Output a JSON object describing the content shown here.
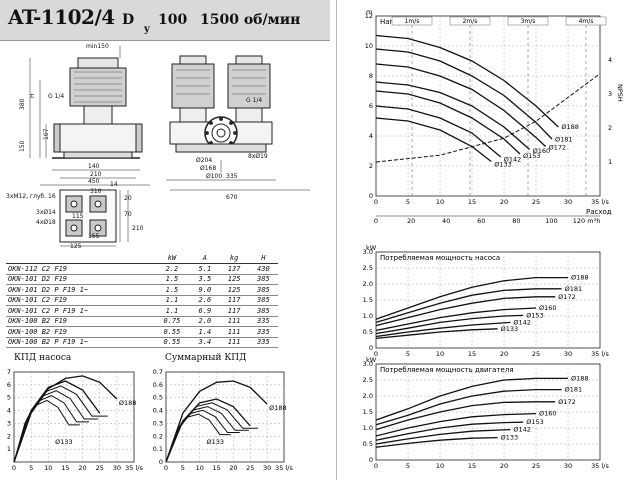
{
  "header": {
    "model": "AT-1102/4",
    "dn_label": "D",
    "dn_sub": "y",
    "dn_value": "100",
    "speed": "1500 об/мин"
  },
  "drawing": {
    "dims_side": [
      "min150",
      "H",
      "380",
      "G 1/4",
      "150",
      "107",
      "140",
      "210",
      "450",
      "310"
    ],
    "dims_front": [
      "G 1/4",
      "Ø204",
      "Ø168",
      "Ø100",
      "8xØ19",
      "335",
      "670"
    ],
    "dims_base": [
      "3xM12, глуб. 16",
      "3xØ14",
      "4xØ18",
      "20",
      "70",
      "210",
      "125",
      "155",
      "115",
      "14"
    ]
  },
  "spec_table": {
    "headers": [
      "",
      "kW",
      "A",
      "kg",
      "H"
    ],
    "rows": [
      [
        "OKN-112 C2 F19",
        "2.2",
        "5.1",
        "137",
        "430"
      ],
      [
        "OKN-101 D2 F19",
        "1.5",
        "3.5",
        "125",
        "385"
      ],
      [
        "OKN-101 D2 P F19 1~",
        "1.5",
        "9.0",
        "125",
        "385"
      ],
      [
        "OKN-101 C2 F19",
        "1.1",
        "2.6",
        "117",
        "385"
      ],
      [
        "OKN-101 C2 P F19 1~",
        "1.1",
        "6.9",
        "117",
        "385"
      ],
      [
        "OKN-100 B2 F19",
        "0.75",
        "2.0",
        "111",
        "335"
      ],
      [
        "OKN-100 B2 F19",
        "0.55",
        "1.4",
        "111",
        "335"
      ],
      [
        "OKN-100 B2 P F19 1~",
        "0.55",
        "3.4",
        "111",
        "335"
      ]
    ]
  },
  "chart_data": [
    {
      "type": "line",
      "title": "Напор",
      "xlabel": "Расход",
      "y_unit": "m",
      "x_ticks": [
        "0",
        "5",
        "10",
        "15",
        "20",
        "25",
        "30",
        "35 l/s"
      ],
      "x2_ticks": [
        "0",
        "20",
        "40",
        "60",
        "80",
        "100",
        "120 m³h"
      ],
      "y_ticks": [
        "0",
        "2",
        "4",
        "6",
        "8",
        "10",
        "12"
      ],
      "y2_label": "NPSH",
      "y2_ticks": [
        "1",
        "2",
        "3",
        "4"
      ],
      "velocity_labels": [
        "1m/s",
        "2m/s",
        "3m/s",
        "4m/s"
      ],
      "xlim": [
        0,
        35
      ],
      "ylim": [
        0,
        12
      ],
      "series": [
        {
          "name": "Ø188",
          "x": [
            0,
            5,
            10,
            15,
            20,
            25,
            28.5
          ],
          "values": [
            10.7,
            10.5,
            9.9,
            9.0,
            7.7,
            6.0,
            4.6
          ]
        },
        {
          "name": "Ø181",
          "x": [
            0,
            5,
            10,
            15,
            20,
            25,
            27.5
          ],
          "values": [
            9.8,
            9.6,
            9.0,
            8.0,
            6.7,
            4.9,
            3.8
          ]
        },
        {
          "name": "Ø172",
          "x": [
            0,
            5,
            10,
            15,
            20,
            25,
            26.5
          ],
          "values": [
            8.8,
            8.6,
            8.0,
            7.1,
            5.7,
            3.9,
            3.3
          ]
        },
        {
          "name": "Ø160",
          "x": [
            0,
            5,
            10,
            15,
            20,
            24
          ],
          "values": [
            7.6,
            7.4,
            6.9,
            6.0,
            4.6,
            3.1
          ]
        },
        {
          "name": "Ø153",
          "x": [
            0,
            5,
            10,
            15,
            20,
            22.5
          ],
          "values": [
            7.0,
            6.8,
            6.2,
            5.2,
            3.8,
            2.8
          ]
        },
        {
          "name": "Ø142",
          "x": [
            0,
            5,
            10,
            15,
            19.5
          ],
          "values": [
            6.0,
            5.8,
            5.2,
            4.2,
            2.6
          ]
        },
        {
          "name": "Ø133",
          "x": [
            0,
            5,
            10,
            15,
            18
          ],
          "values": [
            5.2,
            5.0,
            4.4,
            3.3,
            2.3
          ]
        }
      ],
      "npsh": {
        "x": [
          0,
          10,
          20,
          25,
          35
        ],
        "values": [
          1.0,
          1.2,
          1.7,
          2.2,
          3.6
        ]
      }
    },
    {
      "type": "line",
      "title": "Потребляемая мощность насоса",
      "y_unit": "kW",
      "x_ticks": [
        "0",
        "5",
        "10",
        "15",
        "20",
        "25",
        "30",
        "35 l/s"
      ],
      "y_ticks": [
        "0",
        "0.5",
        "1.0",
        "1.5",
        "2.0",
        "2.5",
        "3.0"
      ],
      "xlim": [
        0,
        35
      ],
      "ylim": [
        0,
        3
      ],
      "series": [
        {
          "name": "Ø188",
          "x": [
            0,
            5,
            10,
            15,
            20,
            25,
            30
          ],
          "values": [
            0.9,
            1.25,
            1.6,
            1.9,
            2.1,
            2.2,
            2.2
          ]
        },
        {
          "name": "Ø181",
          "x": [
            0,
            5,
            10,
            15,
            20,
            25,
            29
          ],
          "values": [
            0.8,
            1.1,
            1.4,
            1.65,
            1.8,
            1.85,
            1.85
          ]
        },
        {
          "name": "Ø172",
          "x": [
            0,
            5,
            10,
            15,
            20,
            25,
            28
          ],
          "values": [
            0.7,
            0.95,
            1.2,
            1.4,
            1.55,
            1.6,
            1.6
          ]
        },
        {
          "name": "Ø160",
          "x": [
            0,
            5,
            10,
            15,
            20,
            25
          ],
          "values": [
            0.55,
            0.75,
            0.95,
            1.1,
            1.2,
            1.25
          ]
        },
        {
          "name": "Ø153",
          "x": [
            0,
            5,
            10,
            15,
            20,
            23
          ],
          "values": [
            0.45,
            0.62,
            0.8,
            0.92,
            1.0,
            1.02
          ]
        },
        {
          "name": "Ø142",
          "x": [
            0,
            5,
            10,
            15,
            21
          ],
          "values": [
            0.36,
            0.5,
            0.62,
            0.72,
            0.8
          ]
        },
        {
          "name": "Ø133",
          "x": [
            0,
            5,
            10,
            15,
            19
          ],
          "values": [
            0.3,
            0.4,
            0.5,
            0.57,
            0.6
          ]
        }
      ]
    },
    {
      "type": "line",
      "title": "Потребляемая мощность двигателя",
      "y_unit": "kW",
      "x_ticks": [
        "0",
        "5",
        "10",
        "15",
        "20",
        "25",
        "30",
        "35 l/s"
      ],
      "y_ticks": [
        "0",
        "0.5",
        "1.0",
        "1.5",
        "2.0",
        "2.5",
        "3.0"
      ],
      "xlim": [
        0,
        35
      ],
      "ylim": [
        0,
        3
      ],
      "series": [
        {
          "name": "Ø188",
          "x": [
            0,
            5,
            10,
            15,
            20,
            25,
            30
          ],
          "values": [
            1.25,
            1.6,
            2.0,
            2.3,
            2.5,
            2.55,
            2.55
          ]
        },
        {
          "name": "Ø181",
          "x": [
            0,
            5,
            10,
            15,
            20,
            25,
            29
          ],
          "values": [
            1.1,
            1.4,
            1.75,
            2.0,
            2.15,
            2.2,
            2.2
          ]
        },
        {
          "name": "Ø172",
          "x": [
            0,
            5,
            10,
            15,
            20,
            25,
            28
          ],
          "values": [
            0.95,
            1.25,
            1.5,
            1.7,
            1.8,
            1.82,
            1.82
          ]
        },
        {
          "name": "Ø160",
          "x": [
            0,
            5,
            10,
            15,
            20,
            25
          ],
          "values": [
            0.75,
            1.0,
            1.2,
            1.35,
            1.42,
            1.45
          ]
        },
        {
          "name": "Ø153",
          "x": [
            0,
            5,
            10,
            15,
            20,
            23
          ],
          "values": [
            0.62,
            0.82,
            1.0,
            1.12,
            1.17,
            1.18
          ]
        },
        {
          "name": "Ø142",
          "x": [
            0,
            5,
            10,
            15,
            21
          ],
          "values": [
            0.5,
            0.66,
            0.8,
            0.9,
            0.95
          ]
        },
        {
          "name": "Ø133",
          "x": [
            0,
            5,
            10,
            15,
            19
          ],
          "values": [
            0.4,
            0.52,
            0.62,
            0.68,
            0.7
          ]
        }
      ]
    },
    {
      "type": "line",
      "title": "КПД насоса",
      "x_ticks": [
        "0",
        "5",
        "10",
        "15",
        "20",
        "25",
        "30",
        "35 l/s"
      ],
      "y_ticks": [
        "1",
        "2",
        "3",
        "4",
        "5",
        "6",
        "7"
      ],
      "xlim": [
        0,
        35
      ],
      "ylim": [
        0,
        7
      ],
      "series": [
        {
          "name": "Ø188",
          "x": [
            0,
            5,
            10,
            15,
            20,
            25,
            30
          ],
          "values": [
            0,
            3.8,
            5.7,
            6.5,
            6.7,
            6.2,
            4.9
          ]
        },
        {
          "name": "Ø133",
          "x": [
            0,
            5,
            10,
            15,
            20,
            25
          ],
          "values": [
            0,
            4.0,
            5.8,
            6.3,
            5.6,
            3.8
          ]
        }
      ],
      "labels": [
        "Ø188",
        "Ø133"
      ]
    },
    {
      "type": "line",
      "title": "Суммарный КПД",
      "x_ticks": [
        "0",
        "5",
        "10",
        "15",
        "20",
        "25",
        "30",
        "35 l/s"
      ],
      "y_ticks": [
        "0",
        "0.1",
        "0.2",
        "0.3",
        "0.4",
        "0.5",
        "0.6",
        "0.7"
      ],
      "xlim": [
        0,
        35
      ],
      "ylim": [
        0,
        0.7
      ],
      "series": [
        {
          "name": "Ø188",
          "x": [
            0,
            5,
            10,
            15,
            20,
            25,
            30
          ],
          "values": [
            0,
            0.38,
            0.55,
            0.62,
            0.63,
            0.58,
            0.45
          ]
        },
        {
          "name": "Ø133",
          "x": [
            0,
            5,
            10,
            15,
            20,
            25
          ],
          "values": [
            0,
            0.32,
            0.46,
            0.49,
            0.43,
            0.28
          ]
        }
      ],
      "labels": [
        "Ø188",
        "Ø133"
      ]
    }
  ]
}
